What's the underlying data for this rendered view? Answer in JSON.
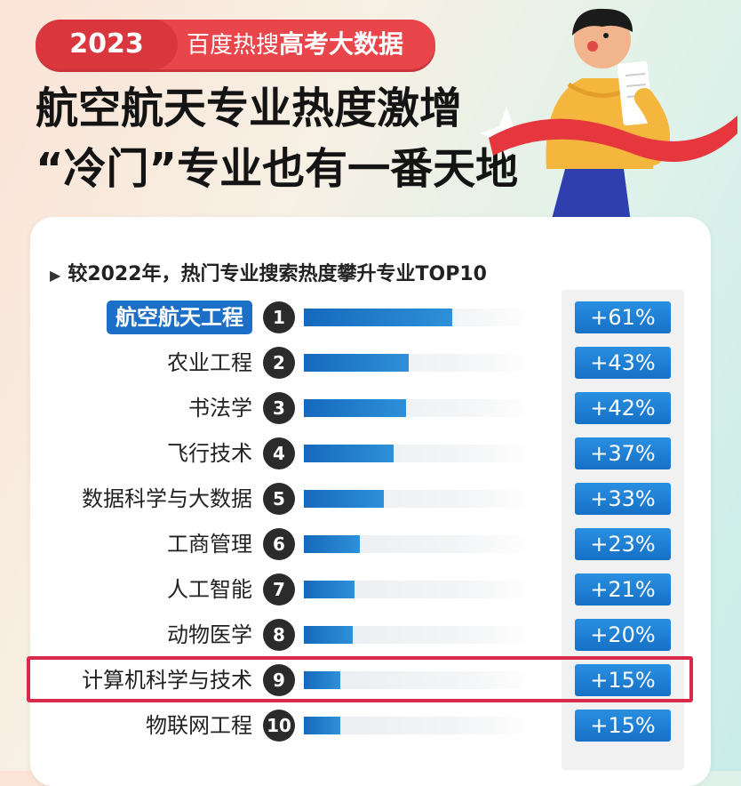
{
  "header": {
    "year": "2023",
    "prefix": "百度热搜",
    "emphasis": "高考大数据"
  },
  "headline": {
    "line1": "航空航天专业热度激增",
    "line2": "“冷门”专业也有一番天地"
  },
  "card": {
    "title": "较2022年，热门专业搜索热度攀升专业TOP10",
    "title_marker": "▶"
  },
  "colors": {
    "accent_red": "#e8464b",
    "bar_blue": "#1c6fc6",
    "highlight_border": "#d62b4b"
  },
  "chart_data": {
    "type": "bar",
    "orientation": "horizontal",
    "title": "较2022年，热门专业搜索热度攀升专业TOP10",
    "categories": [
      "航空航天工程",
      "农业工程",
      "书法学",
      "飞行技术",
      "数据科学与大数据",
      "工商管理",
      "人工智能",
      "动物医学",
      "计算机科学与技术",
      "物联网工程"
    ],
    "ranks": [
      "1",
      "2",
      "3",
      "4",
      "5",
      "6",
      "7",
      "8",
      "9",
      "10"
    ],
    "values": [
      61,
      43,
      42,
      37,
      33,
      23,
      21,
      20,
      15,
      15
    ],
    "value_labels": [
      "+61%",
      "+43%",
      "+42%",
      "+37%",
      "+33%",
      "+23%",
      "+21%",
      "+20%",
      "+15%",
      "+15%"
    ],
    "unit": "%",
    "xlim": [
      0,
      95
    ],
    "highlighted_label": "航空航天工程",
    "boxed_label": "计算机科学与技术"
  }
}
